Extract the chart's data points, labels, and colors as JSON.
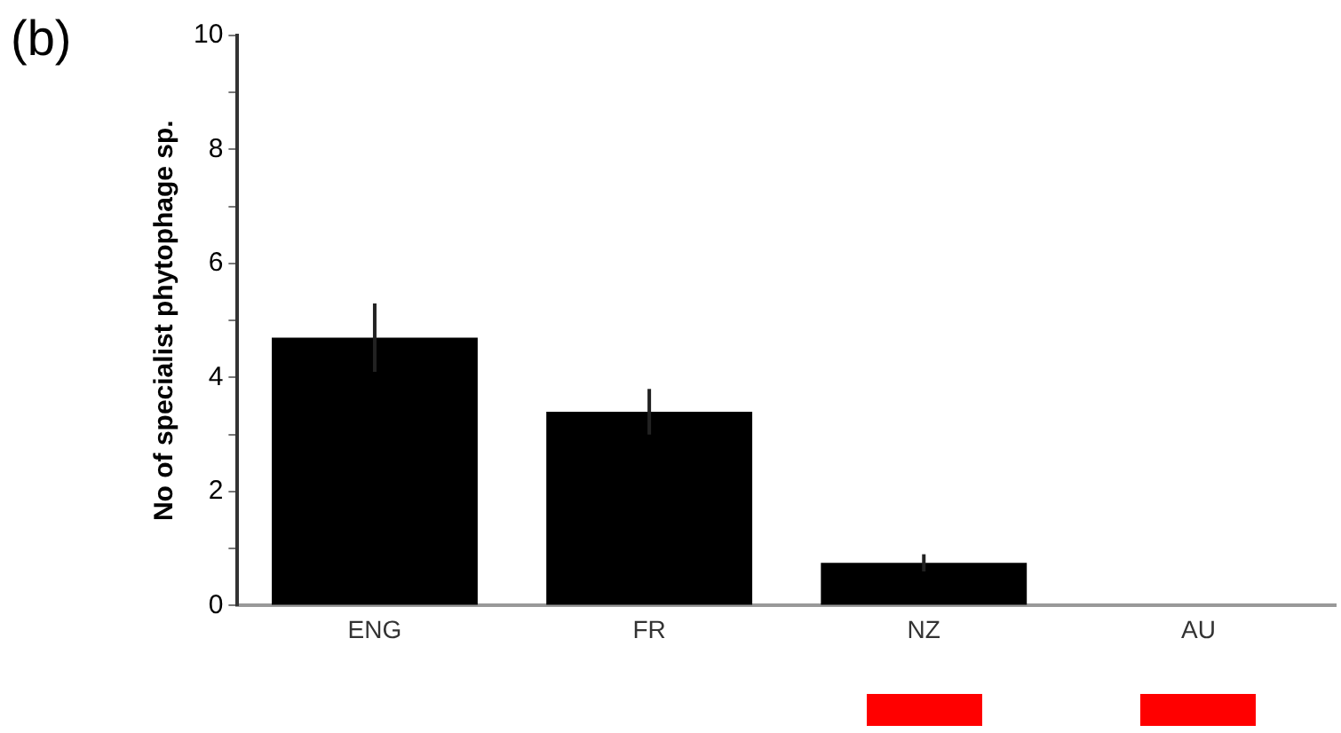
{
  "chart_data": {
    "type": "bar",
    "title": "(b)",
    "ylabel": "No of specialist phytophage sp.",
    "categories": [
      "ENG",
      "FR",
      "NZ",
      "AU"
    ],
    "values": [
      4.7,
      3.4,
      0.75,
      0
    ],
    "errors": [
      0.6,
      0.4,
      0.15,
      null
    ],
    "color": "#000000",
    "ylim": [
      0,
      10
    ],
    "yticks": [
      0,
      {
        "value": 1,
        "label": null
      },
      2,
      {
        "value": 3,
        "label": null
      },
      4,
      {
        "value": 5,
        "label": null
      },
      6,
      {
        "value": 7,
        "label": null
      },
      8,
      {
        "value": 9,
        "label": null
      },
      10
    ],
    "grid": false,
    "legend": false
  }
}
